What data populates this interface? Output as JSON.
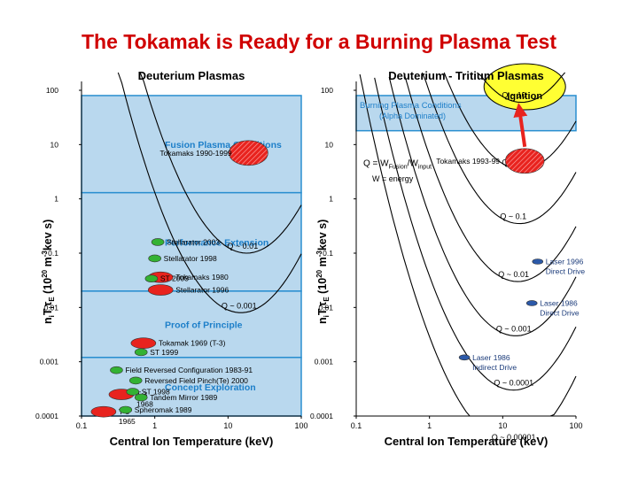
{
  "slide": {
    "title": "The Tokamak is Ready for a Burning Plasma Test"
  },
  "colors": {
    "band": "#b9d8ee",
    "band_edge": "#2a8fd0",
    "ignition": "#ffff33",
    "tokamak": "#e8231e",
    "stellarator": "#33b233",
    "laser": "#2c59a8",
    "label_blue": "#1d7fc9",
    "curve": "#000000"
  },
  "chart_data": [
    {
      "type": "scatter",
      "title": "Deuterium Plasmas",
      "xlabel": "Central Ion Temperature (keV)",
      "ylabel": "niTiτE (10²⁰ m⁻³keV s)",
      "ylabel_parts": {
        "base": "n",
        "i": "i",
        "T": "T",
        "i2": "i",
        "tau": "τ",
        "E": "E",
        "open": " (10",
        "exp1": "20",
        "unit": " m",
        "exp2": "-3",
        "tail": "kev s)"
      },
      "x_scale": "log",
      "y_scale": "log",
      "xlim": [
        0.1,
        100
      ],
      "ylim": [
        0.0001,
        100
      ],
      "x_ticks": [
        "0.1",
        "1",
        "10",
        "100"
      ],
      "y_ticks": [
        "0.0001",
        "0.001",
        "0.01",
        "0.1",
        "1",
        "10",
        "100"
      ],
      "bands": [
        {
          "label": "Fusion Plasma Conditions",
          "label2": "",
          "y_range": [
            1.3,
            80
          ]
        },
        {
          "label": "Performance Extension",
          "label2": "",
          "y_range": [
            0.02,
            1.3
          ]
        },
        {
          "label": "Proof of Principle",
          "label2": "",
          "y_range": [
            0.0012,
            0.02
          ]
        },
        {
          "label": "Concept Exploration",
          "label2": "",
          "y_range": [
            0.0001,
            0.0012
          ]
        }
      ],
      "q_curves": [
        {
          "label": "Q ~ 0.01",
          "y_min": 0.1,
          "t_min": 18
        },
        {
          "label": "Q ~ 0.001",
          "y_min": 0.008,
          "t_min": 15
        }
      ],
      "regions": [
        {
          "label": "Tokamaks 1990-1999",
          "x": 19,
          "y": 7,
          "kind": "tokamak",
          "hatched": true
        },
        {
          "label": "Stellarator  2003",
          "x": 1.1,
          "y": 0.16,
          "kind": "stellarator"
        },
        {
          "label": "Stellarator  1998",
          "x": 1.0,
          "y": 0.08,
          "kind": "stellarator"
        },
        {
          "label": "Tokamaks  1980",
          "x": 1.2,
          "y": 0.036,
          "kind": "tokamak"
        },
        {
          "label": "ST 2003",
          "x": 0.9,
          "y": 0.034,
          "kind": "stellarator"
        },
        {
          "label": "Stellarator  1996",
          "x": 1.2,
          "y": 0.021,
          "kind": "tokamak"
        },
        {
          "label": "Tokamak  1969 (T-3)",
          "x": 0.7,
          "y": 0.0022,
          "kind": "tokamak"
        },
        {
          "label": "ST  1999",
          "x": 0.65,
          "y": 0.0015,
          "kind": "stellarator"
        },
        {
          "label": "Field Reversed Configuration 1983-91",
          "x": 0.3,
          "y": 0.0007,
          "kind": "stellarator"
        },
        {
          "label": "Reversed Field Pinch(Te)  2000",
          "x": 0.55,
          "y": 0.00045,
          "kind": "stellarator"
        },
        {
          "label": "T-3\n1968",
          "x": 0.35,
          "y": 0.00025,
          "kind": "tokamak"
        },
        {
          "label": "ST  1998",
          "x": 0.5,
          "y": 0.00028,
          "kind": "stellarator"
        },
        {
          "label": "Tandem Mirror 1989",
          "x": 0.65,
          "y": 0.00022,
          "kind": "stellarator"
        },
        {
          "label": "T-3\n1965",
          "x": 0.2,
          "y": 0.00012,
          "kind": "tokamak"
        },
        {
          "label": "Spheromak 1989",
          "x": 0.4,
          "y": 0.00013,
          "kind": "stellarator"
        }
      ],
      "annotations": [
        "Fusion Plasma",
        "Conditions",
        "Q ~ 0.01",
        "Q ~ 0.001"
      ]
    },
    {
      "type": "scatter",
      "title": "Deuterium - Tritium Plasmas",
      "xlabel": "Central Ion Temperature (keV)",
      "ylabel": "niTiτE (10²⁰ m⁻³keV s)",
      "ylabel_parts": {
        "base": "n",
        "i": "i",
        "T": "T",
        "i2": "i",
        "tau": "τ",
        "E": "E",
        "open": " (10",
        "exp1": "20",
        "unit": " m",
        "exp2": "-3",
        "tail": "kev s)"
      },
      "x_scale": "log",
      "y_scale": "log",
      "xlim": [
        0.1,
        100
      ],
      "ylim": [
        0.0001,
        100
      ],
      "x_ticks": [
        "0.1",
        "1",
        "10",
        "100"
      ],
      "y_ticks": [
        "0.0001",
        "0.001",
        "0.01",
        "0.1",
        "1",
        "10",
        "100"
      ],
      "band": {
        "label": "Burning Plasma  Conditions",
        "label2": "(Alpha Dominated)",
        "y_range": [
          18,
          80
        ]
      },
      "q_curves": [
        {
          "label": "Q ~ 10",
          "y_min": 60,
          "t_min": 18
        },
        {
          "label": "Q ~ 1",
          "y_min": 3.5,
          "t_min": 18
        },
        {
          "label": "Q ~ 0.1",
          "y_min": 0.35,
          "t_min": 17
        },
        {
          "label": "Q ~ 0.01",
          "y_min": 0.03,
          "t_min": 16
        },
        {
          "label": "Q ~ 0.001",
          "y_min": 0.003,
          "t_min": 15
        },
        {
          "label": "Q ~ 0.0001",
          "y_min": 0.0003,
          "t_min": 14
        },
        {
          "label": "Q ~ 0.00001",
          "y_min": 3e-05,
          "t_min": 13
        }
      ],
      "regions": [
        {
          "label": "Ignition",
          "x": 20,
          "y": 130,
          "kind": "ignition"
        },
        {
          "label": "Tokamaks 1993-99",
          "x": 20,
          "y": 5,
          "kind": "tokamak",
          "hatched": true
        },
        {
          "label": "Laser  1996\nDirect Drive",
          "x": 30,
          "y": 0.07,
          "kind": "laser"
        },
        {
          "label": "Laser  1986\nDirect Drive",
          "x": 25,
          "y": 0.012,
          "kind": "laser"
        },
        {
          "label": "Laser  1986\nIndirect Drive",
          "x": 3,
          "y": 0.0012,
          "kind": "laser"
        }
      ],
      "formula": {
        "q": "Q = W",
        "sub1": "Fusion",
        "slash": "/W",
        "sub2": "input",
        "w_line": "W = energy"
      },
      "arrow": {
        "from": "Tokamaks 1993-99",
        "to": "Ignition"
      },
      "annotations": [
        "Q ~ 10",
        "Q ~ 1",
        "Q ~ 0.1",
        "Q ~ 0.01",
        "Q ~ 0.001",
        "Q ~ 0.0001",
        "Q ~ 0.00001"
      ]
    }
  ]
}
